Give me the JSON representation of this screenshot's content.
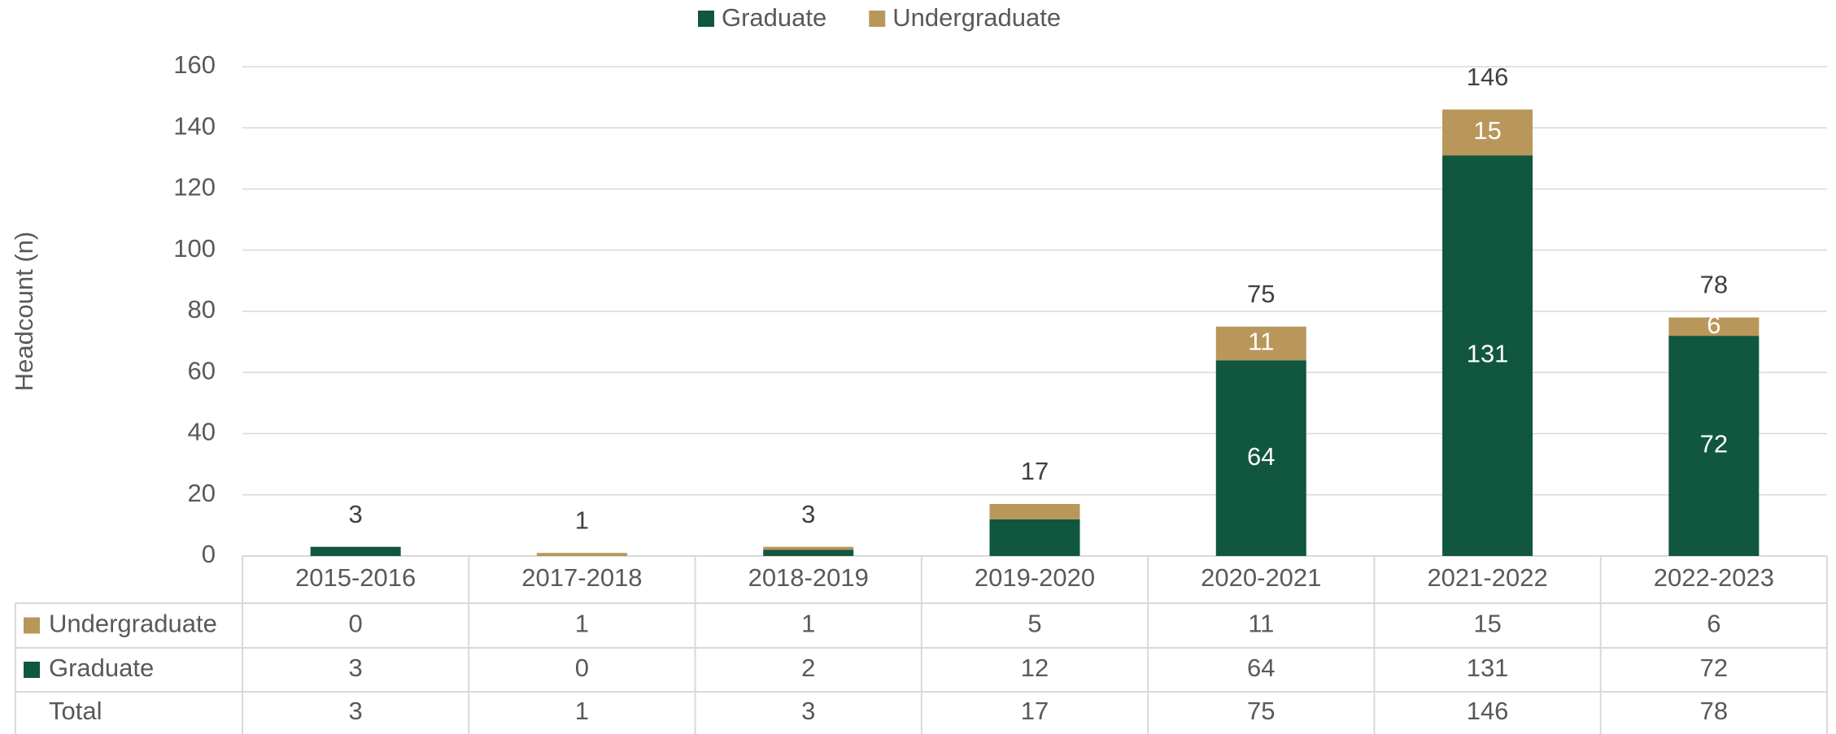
{
  "chart_data": {
    "type": "bar",
    "stacked": true,
    "y_label": "Headcount (n)",
    "categories": [
      "2015-2016",
      "2017-2018",
      "2018-2019",
      "2019-2020",
      "2020-2021",
      "2021-2022",
      "2022-2023"
    ],
    "series": [
      {
        "name": "Graduate",
        "color": "#115740",
        "values": [
          3,
          0,
          2,
          12,
          64,
          131,
          72
        ]
      },
      {
        "name": "Undergraduate",
        "color": "#b9975b",
        "values": [
          0,
          1,
          1,
          5,
          11,
          15,
          6
        ]
      }
    ],
    "totals": {
      "name": "Total",
      "values": [
        3,
        1,
        3,
        17,
        75,
        146,
        78
      ]
    },
    "ylim": [
      0,
      160
    ],
    "yticks": [
      0,
      20,
      40,
      60,
      80,
      100,
      120,
      140,
      160
    ],
    "grid": true,
    "legend": "top"
  }
}
